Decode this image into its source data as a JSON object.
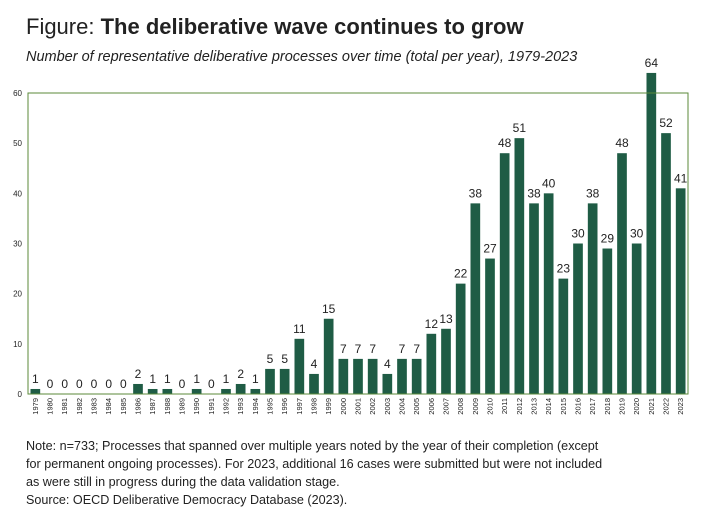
{
  "header": {
    "title_prefix": "Figure:",
    "title_main": "The deliberative wave continues to grow",
    "subtitle": "Number of representative deliberative processes over time (total per year), 1979-2023"
  },
  "notes": {
    "line1": "Note: n=733; Processes that spanned over multiple years noted by the year of their completion (except",
    "line2": "for permanent ongoing processes). For 2023, additional 16 cases were submitted but were not included",
    "line3": "as were still in progress during the data validation stage.",
    "source": "Source: OECD Deliberative Democracy Database (2023)."
  },
  "chart_data": {
    "type": "bar",
    "title": "The deliberative wave continues to grow",
    "xlabel": "",
    "ylabel": "",
    "ylim": [
      0,
      60
    ],
    "yticks": [
      0,
      10,
      20,
      30,
      40,
      50,
      60
    ],
    "bar_color": "#1f5c45",
    "frame_color": "#5b8a3a",
    "grid": false,
    "categories": [
      "1979",
      "1980",
      "1981",
      "1982",
      "1983",
      "1984",
      "1985",
      "1986",
      "1987",
      "1988",
      "1989",
      "1990",
      "1991",
      "1992",
      "1993",
      "1994",
      "1995",
      "1996",
      "1997",
      "1998",
      "1999",
      "2000",
      "2001",
      "2002",
      "2003",
      "2004",
      "2005",
      "2006",
      "2007",
      "2008",
      "2009",
      "2010",
      "2011",
      "2012",
      "2013",
      "2014",
      "2015",
      "2016",
      "2017",
      "2018",
      "2019",
      "2020",
      "2021",
      "2022",
      "2023"
    ],
    "values": [
      1,
      0,
      0,
      0,
      0,
      0,
      0,
      2,
      1,
      1,
      0,
      1,
      0,
      1,
      2,
      1,
      5,
      5,
      11,
      4,
      15,
      7,
      7,
      7,
      4,
      7,
      7,
      12,
      13,
      22,
      38,
      27,
      48,
      51,
      38,
      40,
      23,
      30,
      38,
      29,
      48,
      30,
      64,
      52,
      41
    ]
  }
}
